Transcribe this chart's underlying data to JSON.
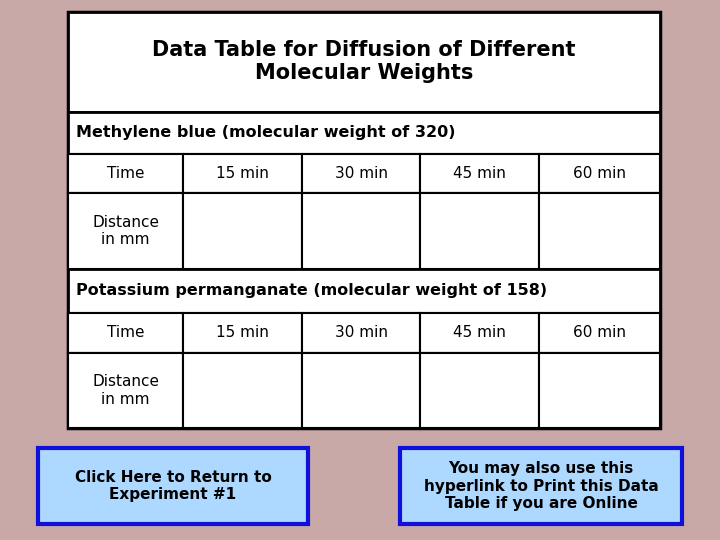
{
  "title": "Data Table for Diffusion of Different\nMolecular Weights",
  "bg_color": "#c9a8a8",
  "table_bg": "#ffffff",
  "section1_label": "Methylene blue (molecular weight of 320)",
  "section2_label": "Potassium permanganate (molecular weight of 158)",
  "col_headers": [
    "Time",
    "15 min",
    "30 min",
    "45 min",
    "60 min"
  ],
  "row_label": "Distance\nin mm",
  "button1_text": "Click Here to Return to\nExperiment #1",
  "button2_text": "You may also use this\nhyperlink to Print this Data\nTable if you are Online",
  "button_bg": "#add8ff",
  "button_border": "#1010dd",
  "title_fontsize": 15,
  "section_fontsize": 11.5,
  "cell_fontsize": 11,
  "button_fontsize": 11
}
